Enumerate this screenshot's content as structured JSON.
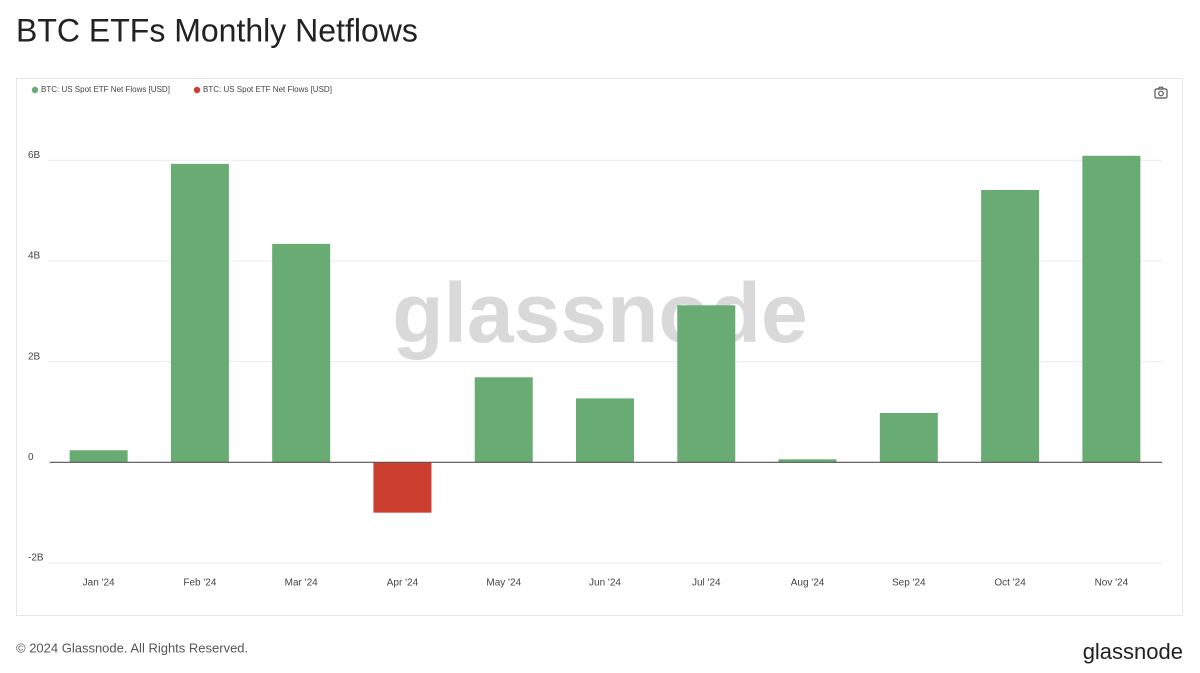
{
  "chart_data": {
    "type": "bar",
    "title": "BTC ETFs Monthly Netflows",
    "categories": [
      "Jan '24",
      "Feb '24",
      "Mar '24",
      "Apr '24",
      "May '24",
      "Jun '24",
      "Jul '24",
      "Aug '24",
      "Sep '24",
      "Oct '24",
      "Nov '24"
    ],
    "series": [
      {
        "name": "BTC: US Spot ETF Net Flows [USD]",
        "color": "#68ac74",
        "values": [
          240000000,
          5930000000,
          4340000000,
          null,
          1690000000,
          1270000000,
          3120000000,
          60000000,
          980000000,
          5410000000,
          6090000000
        ]
      },
      {
        "name": "BTC: US Spot ETF Net Flows [USD]",
        "color": "#cc3f2f",
        "values": [
          null,
          null,
          null,
          -1000000000,
          null,
          null,
          null,
          null,
          null,
          null,
          null
        ]
      }
    ],
    "ylim": [
      -2000000000,
      7000000000
    ],
    "yticks": [
      {
        "value": -2000000000,
        "label": "-2B"
      },
      0,
      {
        "value": 2000000000,
        "label": "2B"
      },
      {
        "value": 4000000000,
        "label": "4B"
      },
      {
        "value": 6000000000,
        "label": "6B"
      }
    ],
    "grid": true,
    "watermark": "glassnode",
    "footer": "© 2024 Glassnode. All Rights Reserved.",
    "brand": "glassnode"
  }
}
